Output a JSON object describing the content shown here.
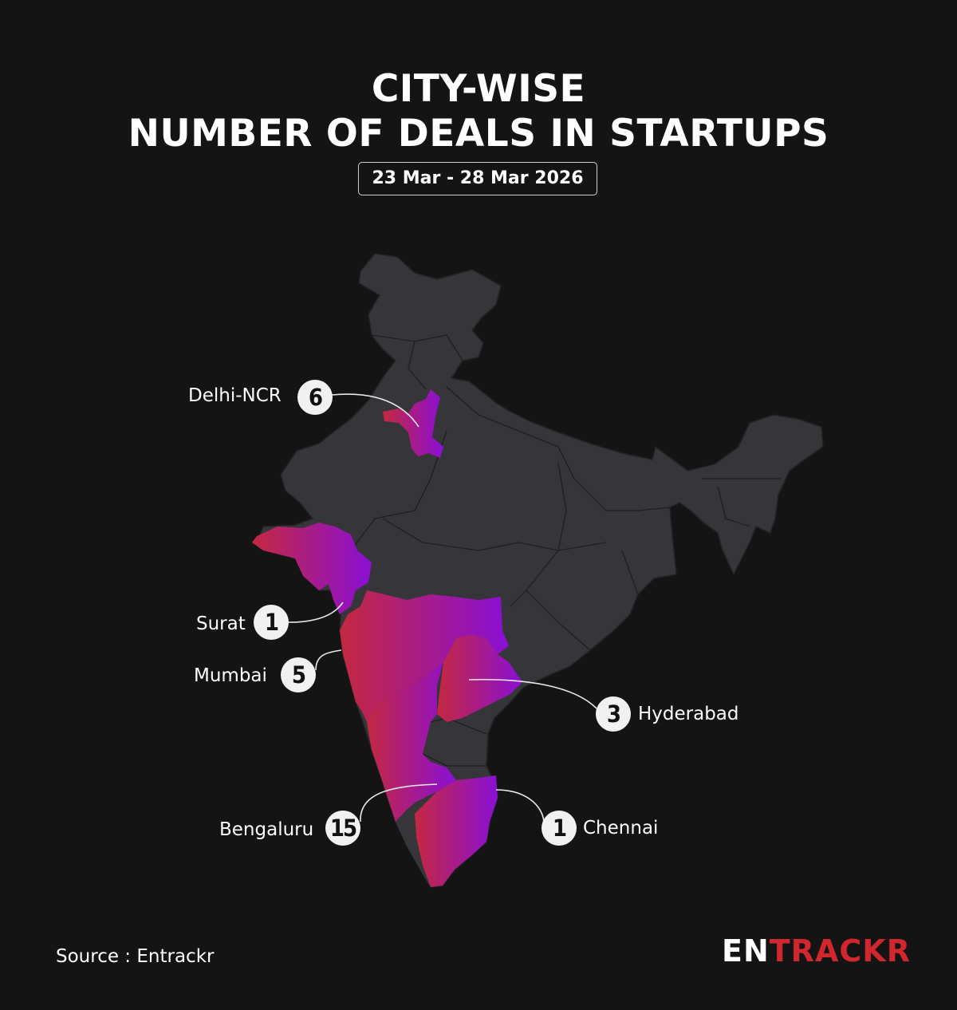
{
  "title_line1": "CITY-WISE",
  "title_line2": "NUMBER OF DEALS IN STARTUPS",
  "date_range": "23 Mar - 28 Mar 2026",
  "cities": [
    {
      "name": "Delhi-NCR",
      "deals": "6"
    },
    {
      "name": "Surat",
      "deals": "1"
    },
    {
      "name": "Mumbai",
      "deals": "5"
    },
    {
      "name": "Hyderabad",
      "deals": "3"
    },
    {
      "name": "Bengaluru",
      "deals": "15"
    },
    {
      "name": "Chennai",
      "deals": "1"
    }
  ],
  "source": "Source : Entrackr",
  "logo": {
    "part1": "EN",
    "part2": "TRACKR"
  },
  "colors": {
    "background": "#141414",
    "map_base": "#36363a",
    "highlight_start": "#c4283f",
    "highlight_end": "#8a0fd6",
    "badge": "#f1f1f1",
    "logo_red": "#d0262d"
  }
}
